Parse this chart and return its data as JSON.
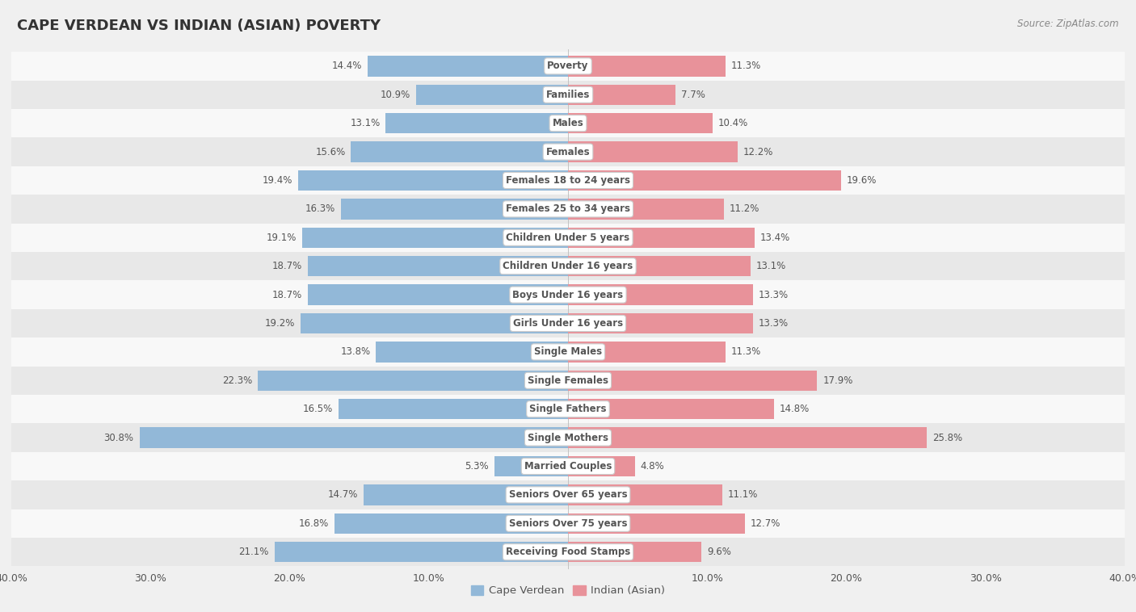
{
  "title": "CAPE VERDEAN VS INDIAN (ASIAN) POVERTY",
  "source": "Source: ZipAtlas.com",
  "categories": [
    "Poverty",
    "Families",
    "Males",
    "Females",
    "Females 18 to 24 years",
    "Females 25 to 34 years",
    "Children Under 5 years",
    "Children Under 16 years",
    "Boys Under 16 years",
    "Girls Under 16 years",
    "Single Males",
    "Single Females",
    "Single Fathers",
    "Single Mothers",
    "Married Couples",
    "Seniors Over 65 years",
    "Seniors Over 75 years",
    "Receiving Food Stamps"
  ],
  "cape_verdean": [
    14.4,
    10.9,
    13.1,
    15.6,
    19.4,
    16.3,
    19.1,
    18.7,
    18.7,
    19.2,
    13.8,
    22.3,
    16.5,
    30.8,
    5.3,
    14.7,
    16.8,
    21.1
  ],
  "indian": [
    11.3,
    7.7,
    10.4,
    12.2,
    19.6,
    11.2,
    13.4,
    13.1,
    13.3,
    13.3,
    11.3,
    17.9,
    14.8,
    25.8,
    4.8,
    11.1,
    12.7,
    9.6
  ],
  "cape_verdean_color": "#92b8d8",
  "indian_color": "#e8929a",
  "xlim": 40.0,
  "legend_labels": [
    "Cape Verdean",
    "Indian (Asian)"
  ],
  "background_color": "#f0f0f0",
  "row_white": "#f8f8f8",
  "row_gray": "#e8e8e8",
  "label_box_color": "#ffffff",
  "label_text_color": "#555555",
  "value_text_color": "#555555",
  "title_color": "#333333",
  "source_color": "#888888"
}
